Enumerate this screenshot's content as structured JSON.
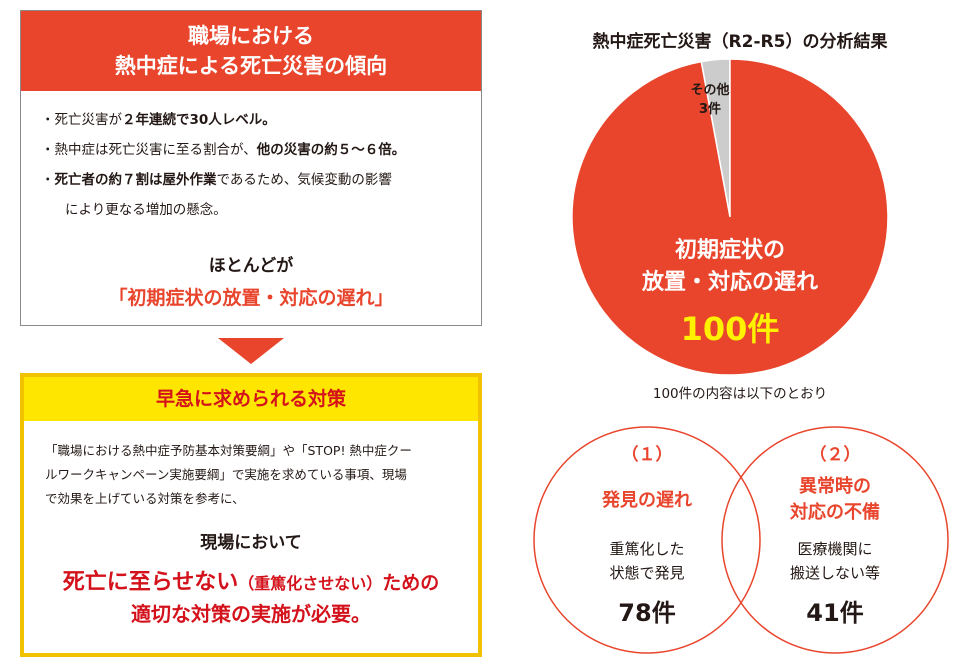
{
  "trend": {
    "title_line1": "職場における",
    "title_line2": "熱中症による死亡災害の傾向",
    "bullets": [
      [
        {
          "t": "・死亡災害が"
        },
        {
          "t": "２年連続で30人レベル。",
          "b": true
        }
      ],
      [
        {
          "t": "・熱中症は死亡災害に至る割合が、"
        },
        {
          "t": "他の災害の約５～６倍。",
          "b": true
        }
      ],
      [
        {
          "t": "・"
        },
        {
          "t": "死亡者の約７割は屋外作業",
          "b": true
        },
        {
          "t": "であるため、気候変動の影響"
        }
      ]
    ],
    "bullet3_cont": "により更なる増加の懸念。",
    "mostly": "ほとんどが",
    "cause": "「初期症状の放置・対応の遅れ」"
  },
  "measures": {
    "header": "早急に求められる対策",
    "body_line1": "「職場における熱中症予防基本対策要綱」や「STOP! 熱中症クー",
    "body_line2": "ルワークキャンペーン実施要綱」で実施を求めている事項、現場",
    "body_line3": "で効果を上げている対策を参考に、",
    "site": "現場において",
    "line1_a": "死亡に至らせない",
    "line1_b": "（重篤化させない）",
    "line1_c": "ための",
    "line2": "適切な対策の実施が必要。"
  },
  "pie": {
    "title": "熱中症死亡災害（R2-R5）の分析結果",
    "main_label_1": "初期症状の",
    "main_label_2": "放置・対応の遅れ",
    "main_value": "100件",
    "other_label": "その他",
    "other_value": "3件",
    "note": "100件の内容は以下のとおり"
  },
  "chart_data": {
    "type": "pie",
    "title": "熱中症死亡災害（R2-R5）の分析結果",
    "labels": [
      "初期症状の放置・対応の遅れ",
      "その他"
    ],
    "values": [
      100,
      3
    ],
    "colors": [
      "#e8452c",
      "#cccccc"
    ]
  },
  "breakdown": [
    {
      "num": "（１）",
      "label_1": "発見の遅れ",
      "label_2": "",
      "desc_1": "重篤化した",
      "desc_2": "状態で発見",
      "count": "78件"
    },
    {
      "num": "（２）",
      "label_1": "異常時の",
      "label_2": "対応の不備",
      "desc_1": "医療機関に",
      "desc_2": "搬送しない等",
      "count": "41件"
    }
  ],
  "colors": {
    "red": "#e8452c",
    "dark_red": "#d4121c",
    "yellow": "#ffe600",
    "yellow_border": "#f1c200",
    "accent_yellow": "#fff200",
    "grey": "#cccccc"
  }
}
